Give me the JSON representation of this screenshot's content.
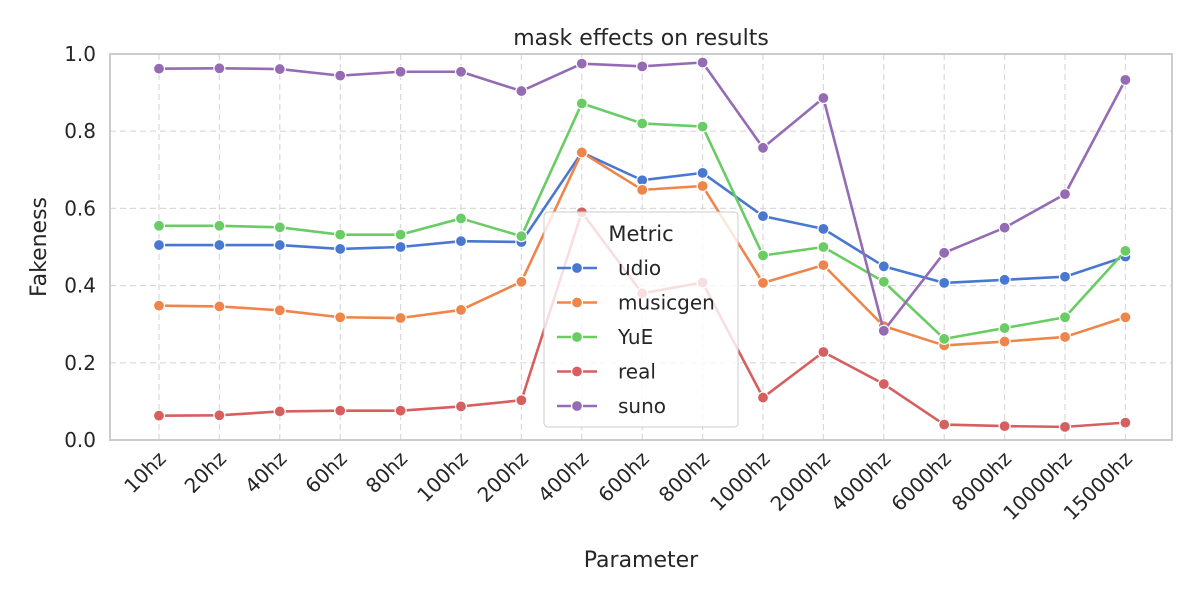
{
  "chart_data": {
    "type": "line",
    "title": "mask effects on results",
    "xlabel": "Parameter",
    "ylabel": "Fakeness",
    "ylim": [
      0,
      1.0
    ],
    "yticks": [
      "0.0",
      "0.2",
      "0.4",
      "0.6",
      "0.8",
      "1.0"
    ],
    "grid": true,
    "legend": {
      "title": "Metric",
      "placement": "center"
    },
    "categories": [
      "10hz",
      "20hz",
      "40hz",
      "60hz",
      "80hz",
      "100hz",
      "200hz",
      "400hz",
      "600hz",
      "800hz",
      "1000hz",
      "2000hz",
      "4000hz",
      "6000hz",
      "8000hz",
      "10000hz",
      "15000hz"
    ],
    "series": [
      {
        "name": "udio",
        "color": "#4878d0",
        "values": [
          0.505,
          0.505,
          0.505,
          0.495,
          0.5,
          0.515,
          0.513,
          0.745,
          0.673,
          0.692,
          0.58,
          0.547,
          0.45,
          0.407,
          0.415,
          0.423,
          0.475
        ]
      },
      {
        "name": "musicgen",
        "color": "#ee854a",
        "values": [
          0.348,
          0.346,
          0.336,
          0.318,
          0.316,
          0.337,
          0.41,
          0.745,
          0.648,
          0.658,
          0.407,
          0.453,
          0.295,
          0.245,
          0.255,
          0.267,
          0.318
        ]
      },
      {
        "name": "YuE",
        "color": "#6acc64",
        "values": [
          0.555,
          0.555,
          0.551,
          0.532,
          0.532,
          0.574,
          0.528,
          0.872,
          0.82,
          0.812,
          0.478,
          0.5,
          0.41,
          0.262,
          0.29,
          0.318,
          0.49
        ]
      },
      {
        "name": "real",
        "color": "#d65f5f",
        "values": [
          0.063,
          0.064,
          0.074,
          0.076,
          0.076,
          0.087,
          0.103,
          0.59,
          0.38,
          0.408,
          0.11,
          0.228,
          0.145,
          0.04,
          0.036,
          0.034,
          0.045
        ]
      },
      {
        "name": "suno",
        "color": "#956cb4",
        "values": [
          0.962,
          0.963,
          0.961,
          0.944,
          0.954,
          0.954,
          0.904,
          0.975,
          0.968,
          0.978,
          0.757,
          0.886,
          0.283,
          0.485,
          0.55,
          0.637,
          0.933
        ]
      }
    ]
  }
}
